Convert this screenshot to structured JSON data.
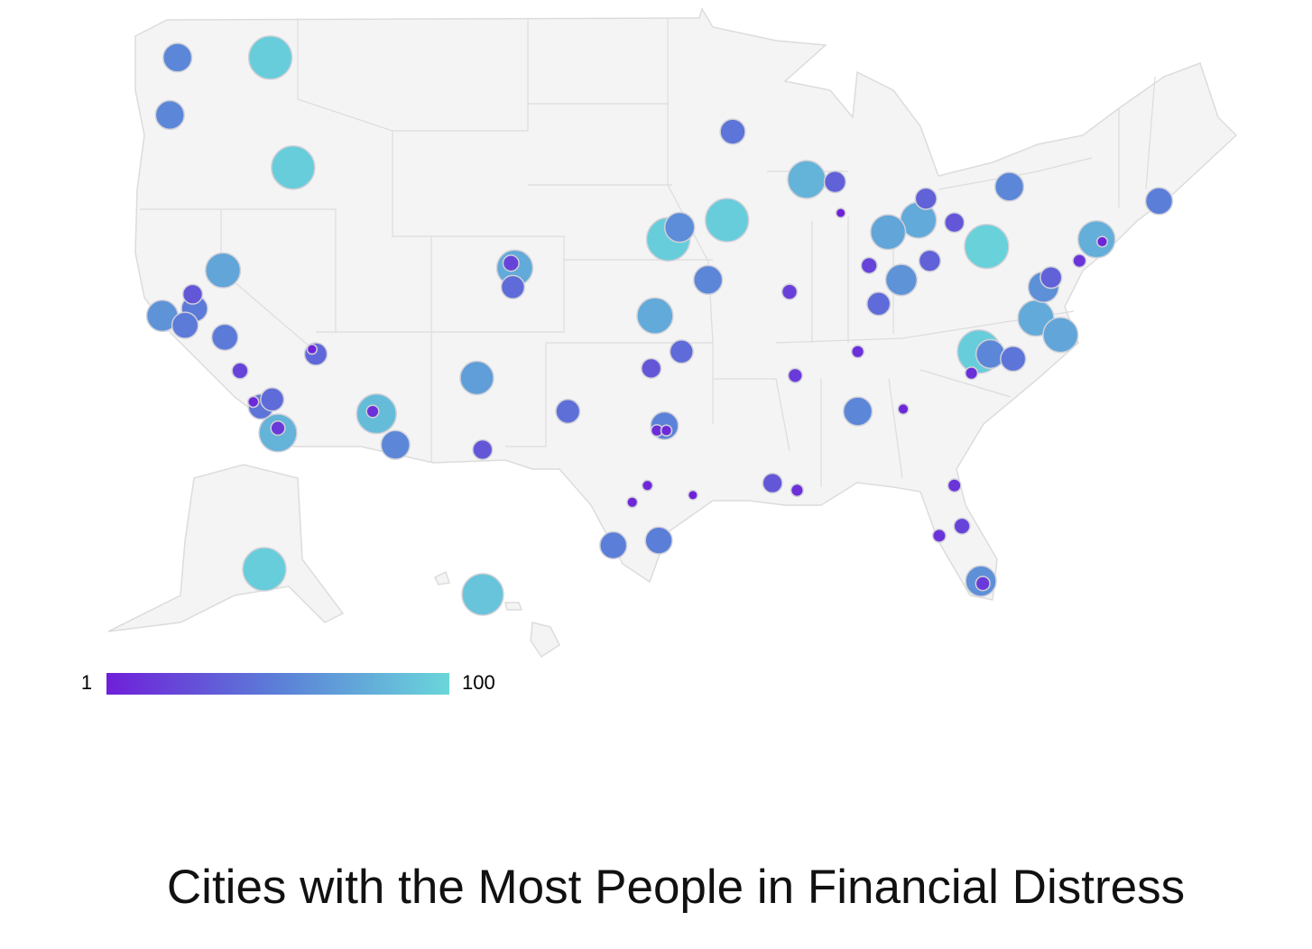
{
  "chart_data": {
    "type": "bubble-map",
    "title": "Cities with the Most People in Financial Distress",
    "clim": [
      1,
      100
    ],
    "color_scale": [
      "#6f1fd9",
      "#5b7fd8",
      "#6ad6da"
    ],
    "x": [
      -122.3,
      -117.4,
      -122.7,
      -116.2,
      -93.0,
      -89.1,
      -87.6,
      -87.3,
      -78.4,
      -70.5,
      -82.8,
      -83.2,
      -84.8,
      -81.3,
      -79.6,
      -73.8,
      -73.5,
      -74.7,
      -76.2,
      -76.6,
      -77.0,
      -75.7,
      -80.0,
      -79.4,
      -78.2,
      -80.4,
      -82.6,
      -84.1,
      -85.3,
      -85.8,
      -90.0,
      -86.4,
      -89.7,
      -86.4,
      -84.0,
      -81.3,
      -80.9,
      -82.1,
      -79.9,
      -79.8,
      -90.9,
      -89.6,
      -95.1,
      -97.5,
      -98.3,
      -99.3,
      -96.9,
      -96.6,
      -97.0,
      -96.5,
      -95.7,
      -97.3,
      -97.1,
      -94.3,
      -96.4,
      -95.8,
      -93.3,
      -104.5,
      -104.7,
      -104.6,
      -101.7,
      -106.5,
      -106.2,
      -111.8,
      -112.0,
      -110.8,
      -115.0,
      -115.2,
      -119.9,
      -121.5,
      -123.1,
      -121.4,
      -121.9,
      -119.8,
      -119.0,
      -117.9,
      -117.3,
      -118.3,
      -117.0,
      -117.0,
      -149.9,
      -157.9
    ],
    "y": [
      48.1,
      48.1,
      45.7,
      43.5,
      45.0,
      43.0,
      42.9,
      41.6,
      42.7,
      42.1,
      42.2,
      41.3,
      40.8,
      41.2,
      40.2,
      40.5,
      40.4,
      39.6,
      38.9,
      38.5,
      37.2,
      36.5,
      35.8,
      35.7,
      35.5,
      34.9,
      39.6,
      38.8,
      37.8,
      39.4,
      38.3,
      35.8,
      34.8,
      33.3,
      33.4,
      30.2,
      28.5,
      28.1,
      26.2,
      26.1,
      30.3,
      30.0,
      29.8,
      30.2,
      29.5,
      27.7,
      27.9,
      32.7,
      32.5,
      32.5,
      35.8,
      35.1,
      37.3,
      38.8,
      40.5,
      41.0,
      41.3,
      39.3,
      39.5,
      38.5,
      33.3,
      34.7,
      31.7,
      33.2,
      33.3,
      31.9,
      35.7,
      35.9,
      39.2,
      38.2,
      37.3,
      37.6,
      36.9,
      36.4,
      35.0,
      33.5,
      33.8,
      33.7,
      32.4,
      32.6,
      61.2,
      21.3
    ],
    "values": [
      55,
      95,
      55,
      95,
      45,
      80,
      35,
      2,
      55,
      50,
      35,
      75,
      72,
      30,
      97,
      78,
      5,
      12,
      35,
      60,
      75,
      72,
      95,
      55,
      45,
      10,
      35,
      62,
      40,
      20,
      18,
      10,
      15,
      55,
      5,
      12,
      20,
      12,
      60,
      15,
      30,
      10,
      2,
      5,
      5,
      50,
      50,
      52,
      8,
      6,
      40,
      30,
      75,
      55,
      95,
      58,
      95,
      75,
      20,
      40,
      42,
      68,
      30,
      85,
      10,
      55,
      38,
      3,
      72,
      30,
      62,
      48,
      48,
      48,
      20,
      45,
      40,
      6,
      80,
      15,
      95,
      90
    ]
  }
}
